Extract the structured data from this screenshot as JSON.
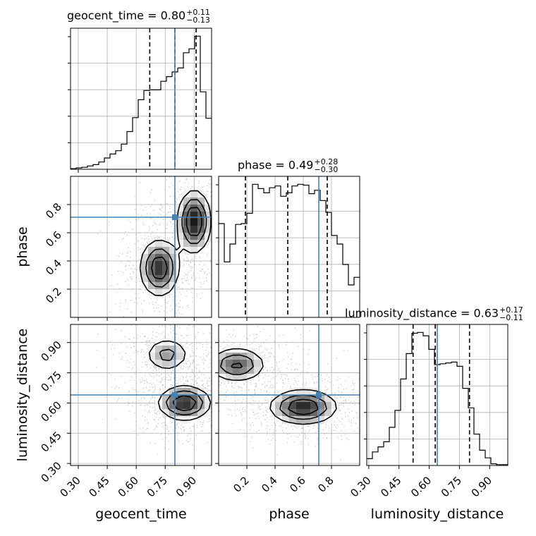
{
  "chart_data": {
    "type": "corner",
    "parameters": [
      {
        "name": "geocent_time",
        "range": [
          0.26,
          0.99
        ],
        "ticks": [
          0.3,
          0.45,
          0.6,
          0.75,
          0.9
        ],
        "tick_labels": [
          "0.30",
          "0.45",
          "0.60",
          "0.75",
          "0.90"
        ],
        "truth": 0.8,
        "quantiles": [
          0.67,
          0.8,
          0.91
        ],
        "title": {
          "label": "geocent_time = 0.80",
          "plus": "+0.11",
          "minus": "−0.13"
        }
      },
      {
        "name": "phase",
        "range": [
          0.0,
          1.0
        ],
        "ticks": [
          0.2,
          0.4,
          0.6,
          0.8
        ],
        "tick_labels": [
          "0.2",
          "0.4",
          "0.6",
          "0.8"
        ],
        "truth": 0.71,
        "quantiles": [
          0.19,
          0.49,
          0.77
        ],
        "title": {
          "label": "phase = 0.49",
          "plus": "+0.28",
          "minus": "−0.30"
        }
      },
      {
        "name": "luminosity_distance",
        "range": [
          0.29,
          0.99
        ],
        "ticks": [
          0.3,
          0.45,
          0.6,
          0.75,
          0.9
        ],
        "tick_labels": [
          "0.30",
          "0.45",
          "0.60",
          "0.75",
          "0.90"
        ],
        "truth": 0.64,
        "quantiles": [
          0.52,
          0.63,
          0.8
        ],
        "title": {
          "label": "luminosity_distance = 0.63",
          "plus": "+0.17",
          "minus": "−0.11"
        }
      }
    ],
    "histograms": [
      {
        "param": "geocent_time",
        "bin_edges_start": 0.26,
        "bin_width": 0.0292,
        "counts": [
          1,
          2,
          3,
          5,
          7,
          11,
          17,
          23,
          28,
          38,
          57,
          78,
          105,
          119,
          120,
          120,
          133,
          140,
          147,
          153,
          176,
          182,
          201,
          117,
          77
        ]
      },
      {
        "param": "phase",
        "bin_edges_start": 0.0,
        "bin_width": 0.04,
        "counts": [
          110,
          65,
          86,
          109,
          110,
          122,
          156,
          151,
          146,
          152,
          154,
          142,
          146,
          154,
          156,
          155,
          145,
          149,
          137,
          123,
          96,
          86,
          62,
          38,
          47
        ]
      },
      {
        "param": "luminosity_distance",
        "bin_edges_start": 0.29,
        "bin_width": 0.028,
        "counts": [
          8,
          16,
          22,
          28,
          45,
          65,
          102,
          132,
          156,
          157,
          153,
          137,
          119,
          120,
          121,
          122,
          117,
          91,
          68,
          37,
          18,
          9,
          2,
          1,
          1
        ]
      }
    ],
    "density_2d": [
      {
        "x": "geocent_time",
        "y": "phase",
        "blobs": [
          {
            "cx": 0.72,
            "cy": 0.35,
            "sx": 0.06,
            "sy": 0.12,
            "w": 0.9
          },
          {
            "cx": 0.9,
            "cy": 0.68,
            "sx": 0.05,
            "sy": 0.13,
            "w": 1.0
          }
        ]
      },
      {
        "x": "geocent_time",
        "y": "luminosity_distance",
        "blobs": [
          {
            "cx": 0.85,
            "cy": 0.6,
            "sx": 0.08,
            "sy": 0.05,
            "w": 1.0
          },
          {
            "cx": 0.76,
            "cy": 0.84,
            "sx": 0.07,
            "sy": 0.05,
            "w": 0.6
          }
        ]
      },
      {
        "x": "phase",
        "y": "luminosity_distance",
        "blobs": [
          {
            "cx": 0.6,
            "cy": 0.58,
            "sx": 0.14,
            "sy": 0.05,
            "w": 1.0
          },
          {
            "cx": 0.13,
            "cy": 0.79,
            "sx": 0.12,
            "sy": 0.05,
            "w": 0.8
          }
        ]
      }
    ],
    "truth_color": "#4682b4",
    "grid": true
  }
}
